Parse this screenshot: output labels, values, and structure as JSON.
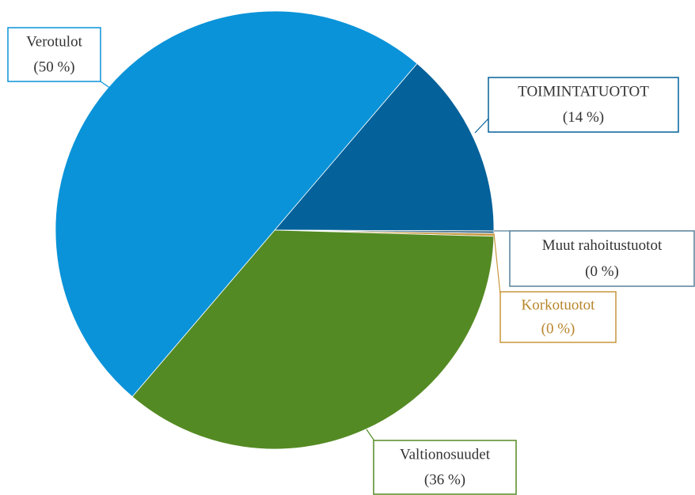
{
  "chart_data": {
    "type": "pie",
    "categories": [
      "TOIMINTATUOTOT",
      "Muut rahoitustuotot",
      "Korkotuotot",
      "Valtionosuudet",
      "Verotulot"
    ],
    "values": [
      13.8,
      0.2,
      0.2,
      35.8,
      50
    ],
    "value_labels": [
      "(14 %)",
      "(0 %)",
      "(0 %)",
      "(36 %)",
      "(50 %)"
    ],
    "colors": [
      "#04619a",
      "#56819a",
      "#c8963c",
      "#548a23",
      "#0a93d8"
    ]
  }
}
